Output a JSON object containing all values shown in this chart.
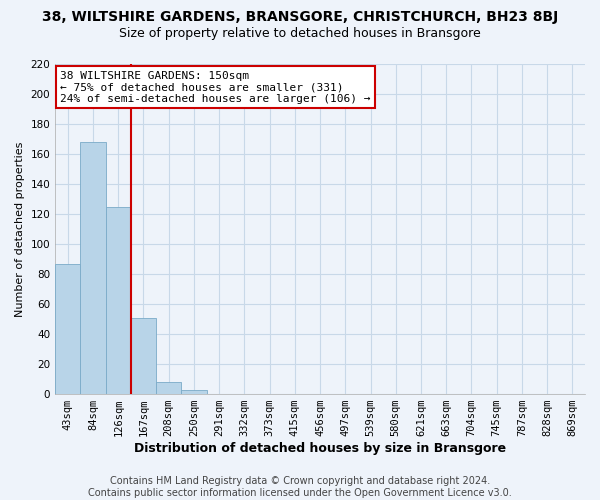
{
  "title": "38, WILTSHIRE GARDENS, BRANSGORE, CHRISTCHURCH, BH23 8BJ",
  "subtitle": "Size of property relative to detached houses in Bransgore",
  "xlabel": "Distribution of detached houses by size in Bransgore",
  "ylabel": "Number of detached properties",
  "bar_labels": [
    "43sqm",
    "84sqm",
    "126sqm",
    "167sqm",
    "208sqm",
    "250sqm",
    "291sqm",
    "332sqm",
    "373sqm",
    "415sqm",
    "456sqm",
    "497sqm",
    "539sqm",
    "580sqm",
    "621sqm",
    "663sqm",
    "704sqm",
    "745sqm",
    "787sqm",
    "828sqm",
    "869sqm"
  ],
  "bar_values": [
    87,
    168,
    125,
    51,
    8,
    3,
    0,
    0,
    0,
    0,
    0,
    0,
    0,
    0,
    0,
    0,
    0,
    0,
    0,
    0,
    0
  ],
  "bar_color": "#b8d4e8",
  "bar_edge_color": "#7aaac8",
  "vline_color": "#cc0000",
  "annotation_text_line1": "38 WILTSHIRE GARDENS: 150sqm",
  "annotation_text_line2": "← 75% of detached houses are smaller (331)",
  "annotation_text_line3": "24% of semi-detached houses are larger (106) →",
  "ylim": [
    0,
    220
  ],
  "yticks": [
    0,
    20,
    40,
    60,
    80,
    100,
    120,
    140,
    160,
    180,
    200,
    220
  ],
  "grid_color": "#c8d8e8",
  "background_color": "#eef3fa",
  "footer_text": "Contains HM Land Registry data © Crown copyright and database right 2024.\nContains public sector information licensed under the Open Government Licence v3.0.",
  "title_fontsize": 10,
  "subtitle_fontsize": 9,
  "xlabel_fontsize": 9,
  "ylabel_fontsize": 8,
  "annotation_fontsize": 8,
  "footer_fontsize": 7,
  "tick_fontsize": 7.5
}
